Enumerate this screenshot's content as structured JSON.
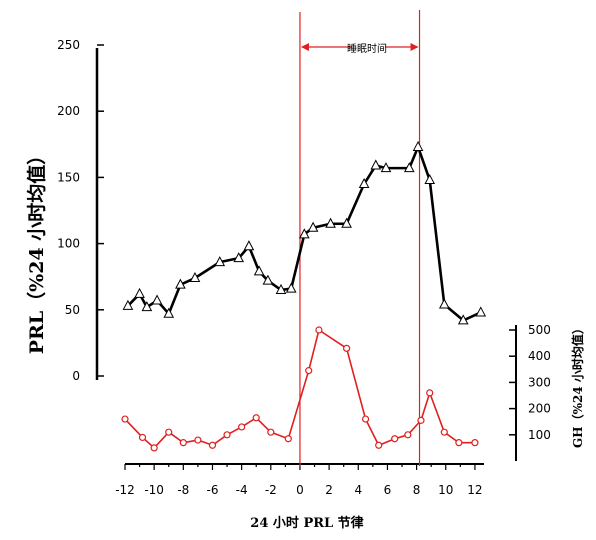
{
  "chart_data": {
    "type": "line",
    "xlabel": "24 小时 PRL 节律",
    "ylabel_left": "PRL（%24 小时均值）",
    "ylabel_right": "GH（%24 小时均值）",
    "annotation": "睡眠时间",
    "x_ticks": [
      -12,
      -10,
      -8,
      -6,
      -4,
      -2,
      0,
      2,
      4,
      6,
      8,
      10,
      12
    ],
    "x_tick_labels": [
      "-12",
      "-10",
      "-8",
      "-6",
      "-4",
      "-2",
      "0",
      "2",
      "4",
      "6",
      "8",
      "10",
      "12"
    ],
    "xlim": [
      -12,
      12.5
    ],
    "y_left_ticks": [
      0,
      50,
      100,
      150,
      200,
      250
    ],
    "y_left_tick_labels": [
      "0",
      "50",
      "100",
      "150",
      "200",
      "250"
    ],
    "y_left_lim": [
      0,
      250
    ],
    "y_right_ticks": [
      100,
      200,
      300,
      400,
      500
    ],
    "y_right_tick_labels": [
      "100",
      "200",
      "300",
      "400",
      "500"
    ],
    "y_right_lim": [
      0,
      500
    ],
    "sleep_period": [
      0,
      8.2
    ],
    "colors": {
      "prl": "#000000",
      "gh": "#e02020",
      "sleep_lines": "#e02020",
      "axes": "#000000"
    },
    "series": [
      {
        "axis": "left",
        "marker": "triangle",
        "color": "#000000",
        "x": [
          -11.8,
          -11,
          -10.5,
          -9.8,
          -9,
          -8.2,
          -7.2,
          -5.5,
          -4.2,
          -3.5,
          -2.8,
          -2.2,
          -1.3,
          -0.6,
          0.3,
          0.9,
          2.1,
          3.2,
          4.4,
          5.2,
          5.9,
          7.5,
          8.1,
          8.9,
          9.9,
          11.2,
          12.4
        ],
        "values": [
          53,
          62,
          52,
          57,
          47,
          69,
          74,
          86,
          89,
          98,
          79,
          72,
          65,
          66,
          107,
          112,
          115,
          115,
          145,
          159,
          157,
          157,
          173,
          148,
          54,
          42,
          48
        ]
      },
      {
        "axis": "right",
        "marker": "circle",
        "color": "#e02020",
        "x": [
          -12,
          -10.8,
          -10,
          -9,
          -8,
          -7,
          -6,
          -5,
          -4,
          -3,
          -2,
          -0.8,
          0.6,
          1.3,
          3.2,
          4.5,
          5.4,
          6.5,
          7.4,
          8.3,
          8.9,
          9.9,
          10.9,
          12
        ],
        "values": [
          160,
          90,
          50,
          110,
          70,
          80,
          60,
          100,
          130,
          165,
          110,
          85,
          345,
          500,
          430,
          160,
          60,
          85,
          100,
          155,
          260,
          110,
          70,
          70
        ]
      }
    ]
  }
}
